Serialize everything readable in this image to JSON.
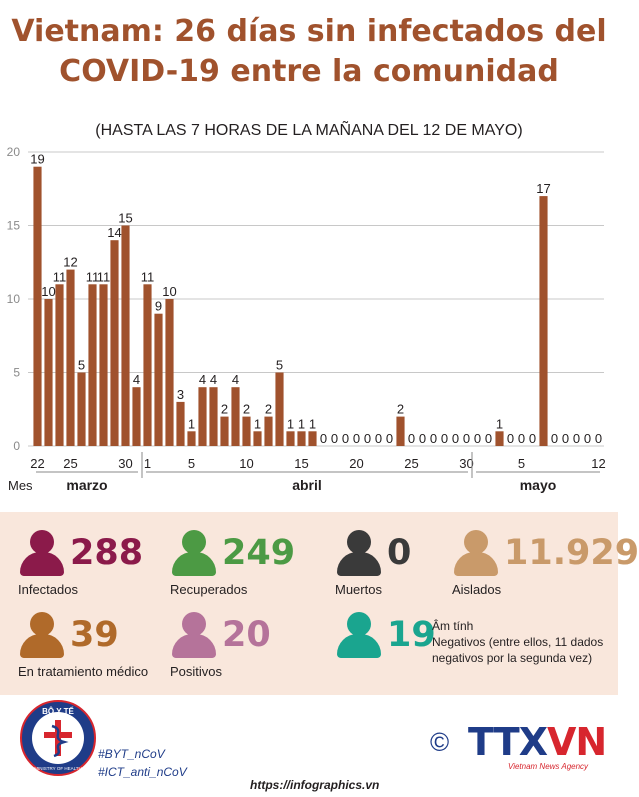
{
  "title_line1": "Vietnam: 26 días sin infectados del",
  "title_line2": "COVID-19 entre la comunidad",
  "subtitle": "(HASTA LAS 7 HORAS DE LA MAÑANA DEL 12 DE MAYO)",
  "chart_data": {
    "type": "bar",
    "ylim": [
      0,
      20
    ],
    "yticks": [
      0,
      5,
      10,
      15,
      20
    ],
    "grid": true,
    "bar_color": "#a0522d",
    "values": [
      19,
      10,
      11,
      12,
      5,
      11,
      11,
      14,
      15,
      4,
      11,
      9,
      10,
      3,
      1,
      4,
      4,
      2,
      4,
      2,
      1,
      2,
      5,
      1,
      1,
      1,
      0,
      0,
      0,
      0,
      0,
      0,
      0,
      2,
      0,
      0,
      0,
      0,
      0,
      0,
      0,
      0,
      1,
      0,
      0,
      0,
      17,
      0,
      0,
      0,
      0,
      0
    ],
    "x_tick_labels": [
      {
        "index": 0,
        "label": "22"
      },
      {
        "index": 3,
        "label": "25"
      },
      {
        "index": 8,
        "label": "30"
      },
      {
        "index": 10,
        "label": "1"
      },
      {
        "index": 14,
        "label": "5"
      },
      {
        "index": 19,
        "label": "10"
      },
      {
        "index": 24,
        "label": "15"
      },
      {
        "index": 29,
        "label": "20"
      },
      {
        "index": 34,
        "label": "25"
      },
      {
        "index": 39,
        "label": "30"
      },
      {
        "index": 44,
        "label": "5"
      },
      {
        "index": 51,
        "label": "12"
      }
    ],
    "month_axis_label": "Mes",
    "months": [
      {
        "label": "marzo",
        "start": 0,
        "end": 9
      },
      {
        "label": "abril",
        "start": 10,
        "end": 39
      },
      {
        "label": "mayo",
        "start": 40,
        "end": 51
      }
    ]
  },
  "stats": {
    "infected": {
      "value": "288",
      "label": "Infectados",
      "color": "#8b1a4a"
    },
    "recovered": {
      "value": "249",
      "label": "Recuperados",
      "color": "#4c9a44"
    },
    "dead": {
      "value": "0",
      "label": "Muertos",
      "color": "#3a3a3a"
    },
    "isolated": {
      "value": "11.929",
      "label": "Aislados",
      "color": "#c99a6a"
    },
    "treatment": {
      "value": "39",
      "label": "En tratamiento médico",
      "color": "#b06a2a"
    },
    "positive": {
      "value": "20",
      "label": "Positivos",
      "color": "#b5739a"
    },
    "negative": {
      "value": "19",
      "color": "#1aa58f",
      "label_line1": "Âm tính",
      "label_line2": "Negativos (entre ellos, 11 dados negativos por la segunda vez)"
    }
  },
  "footer": {
    "logo_text": "BỘ Y TẾ",
    "logo_sub": "MINISTRY OF HEALTH",
    "tag1": "#BYT_nCoV",
    "tag2": "#ICT_anti_nCoV",
    "url": "https://infographics.vn",
    "copyright": "©",
    "agency_a": "TTX",
    "agency_b": "VN",
    "agency_sub": "Vietnam News Agency"
  }
}
